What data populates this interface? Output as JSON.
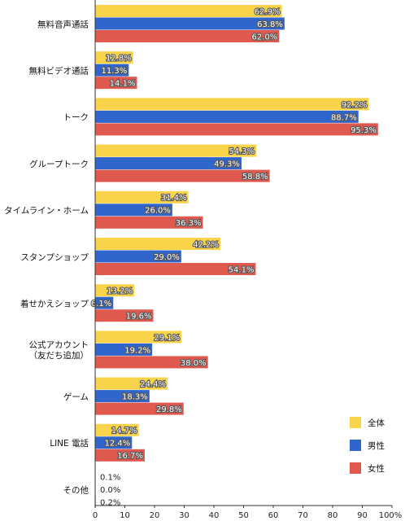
{
  "chart_data": {
    "type": "bar",
    "orientation": "horizontal",
    "categories": [
      "無料音声通話",
      "無料ビデオ通話",
      "トーク",
      "グループトーク",
      "タイムライン・ホーム",
      "スタンプショップ",
      "着せかえショップ",
      "公式アカウント\n（友だち追加）",
      "ゲーム",
      "LINE 電話",
      "その他"
    ],
    "series": [
      {
        "name": "全体",
        "color": "#f9d34a",
        "values": [
          62.9,
          12.8,
          92.2,
          54.3,
          31.4,
          42.2,
          13.2,
          29.1,
          24.4,
          14.7,
          0.1
        ]
      },
      {
        "name": "男性",
        "color": "#3066cc",
        "values": [
          63.8,
          11.3,
          88.7,
          49.3,
          26.0,
          29.0,
          6.1,
          19.2,
          18.3,
          12.4,
          0.0
        ]
      },
      {
        "name": "女性",
        "color": "#e0594f",
        "values": [
          62.0,
          14.1,
          95.3,
          58.8,
          36.3,
          54.1,
          19.6,
          38.0,
          29.8,
          16.7,
          0.2
        ]
      }
    ],
    "value_labels": [
      [
        "62.9%",
        "12.8%",
        "92.2%",
        "54.3%",
        "31.4%",
        "42.2%",
        "13.2%",
        "29.1%",
        "24.4%",
        "14.7%",
        "0.1%"
      ],
      [
        "63.8%",
        "11.3%",
        "88.7%",
        "49.3%",
        "26.0%",
        "29.0%",
        "6.1%",
        "19.2%",
        "18.3%",
        "12.4%",
        "0.0%"
      ],
      [
        "62.0%",
        "14.1%",
        "95.3%",
        "58.8%",
        "36.3%",
        "54.1%",
        "19.6%",
        "38.0%",
        "29.8%",
        "16.7%",
        "0.2%"
      ]
    ],
    "xlim": [
      0,
      100
    ],
    "xticks": [
      "0",
      "10",
      "20",
      "30",
      "40",
      "50",
      "60",
      "70",
      "80",
      "90",
      "100%"
    ],
    "title": "",
    "xlabel": "",
    "ylabel": "",
    "grid": false,
    "legend_position": "bottom-right"
  }
}
